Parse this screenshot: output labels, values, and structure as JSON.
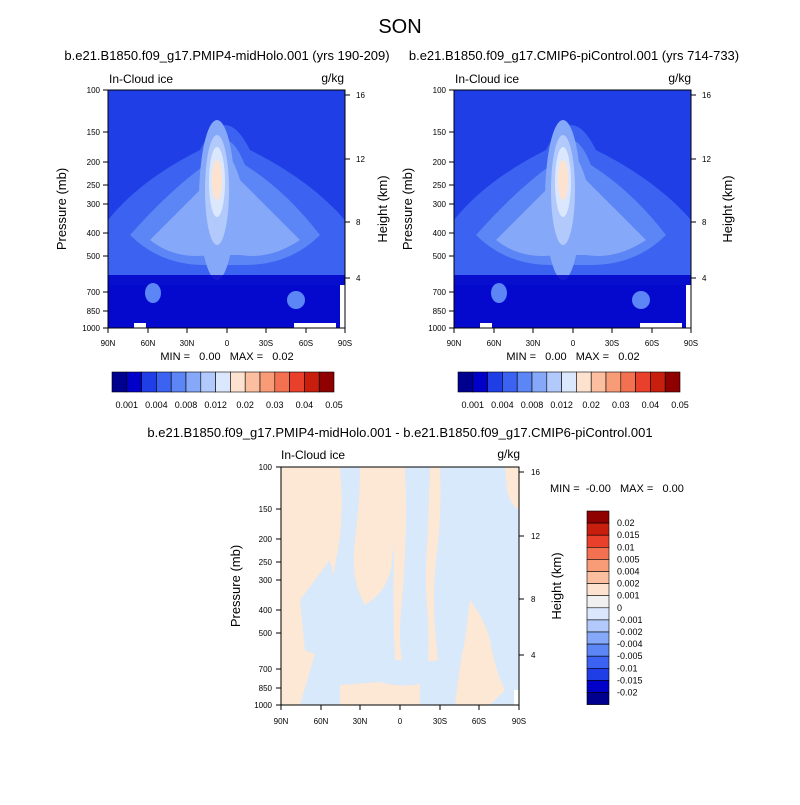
{
  "page": {
    "main_title": "SON"
  },
  "panels": [
    {
      "title": "b.e21.B1850.f09_g17.PMIP4-midHolo.001 (yrs 190-209)",
      "left_label": "In-Cloud ice",
      "right_label": "g/kg",
      "stats": "MIN =   0.00   MAX =   0.02"
    },
    {
      "title": "b.e21.B1850.f09_g17.CMIP6-piControl.001 (yrs 714-733)",
      "left_label": "In-Cloud ice",
      "right_label": "g/kg",
      "stats": "MIN =   0.00   MAX =   0.02"
    },
    {
      "title": "b.e21.B1850.f09_g17.PMIP4-midHolo.001 - b.e21.B1850.f09_g17.CMIP6-piControl.001",
      "left_label": "In-Cloud ice",
      "right_label": "g/kg",
      "stats": "MIN =  -0.00   MAX =   0.00"
    }
  ],
  "chart_data": [
    {
      "type": "heatmap",
      "title": "b.e21.B1850.f09_g17.PMIP4-midHolo.001 (yrs 190-209)",
      "xlabel": "",
      "ylabel": "Pressure (mb)",
      "y2label": "Height (km)",
      "x_ticks": [
        "90N",
        "60N",
        "30N",
        "0",
        "30S",
        "60S",
        "90S"
      ],
      "y_ticks": [
        "100",
        "150",
        "200",
        "250",
        "300",
        "400",
        "500",
        "700",
        "850",
        "1000"
      ],
      "y2_ticks": [
        "16",
        "12",
        "8",
        "4"
      ],
      "y_scale": "log",
      "colorbar": {
        "orientation": "horizontal",
        "labels": [
          "0.001",
          "0.004",
          "0.008",
          "0.012",
          "0.02",
          "0.03",
          "0.04",
          "0.05"
        ]
      },
      "min": 0.0,
      "max": 0.02
    },
    {
      "type": "heatmap",
      "title": "b.e21.B1850.f09_g17.CMIP6-piControl.001 (yrs 714-733)",
      "xlabel": "",
      "ylabel": "Pressure (mb)",
      "y2label": "Height (km)",
      "x_ticks": [
        "90N",
        "60N",
        "30N",
        "0",
        "30S",
        "60S",
        "90S"
      ],
      "y_ticks": [
        "100",
        "150",
        "200",
        "250",
        "300",
        "400",
        "500",
        "700",
        "850",
        "1000"
      ],
      "y2_ticks": [
        "16",
        "12",
        "8",
        "4"
      ],
      "y_scale": "log",
      "colorbar": {
        "orientation": "horizontal",
        "labels": [
          "0.001",
          "0.004",
          "0.008",
          "0.012",
          "0.02",
          "0.03",
          "0.04",
          "0.05"
        ]
      },
      "min": 0.0,
      "max": 0.02
    },
    {
      "type": "heatmap",
      "title": "b.e21.B1850.f09_g17.PMIP4-midHolo.001 - b.e21.B1850.f09_g17.CMIP6-piControl.001",
      "xlabel": "",
      "ylabel": "Pressure (mb)",
      "y2label": "Height (km)",
      "x_ticks": [
        "90N",
        "60N",
        "30N",
        "0",
        "30S",
        "60S",
        "90S"
      ],
      "y_ticks": [
        "100",
        "150",
        "200",
        "250",
        "300",
        "400",
        "500",
        "700",
        "850",
        "1000"
      ],
      "y2_ticks": [
        "16",
        "12",
        "8",
        "4"
      ],
      "y_scale": "log",
      "colorbar": {
        "orientation": "vertical",
        "labels": [
          "0.02",
          "0.015",
          "0.01",
          "0.005",
          "0.004",
          "0.002",
          "0.001",
          "0",
          "-0.001",
          "-0.002",
          "-0.004",
          "-0.005",
          "-0.01",
          "-0.015",
          "-0.02"
        ]
      },
      "min": -0.0,
      "max": 0.0
    }
  ],
  "colors": {
    "seq": [
      "#00008f",
      "#0000c8",
      "#1f3ee6",
      "#3b62f0",
      "#5c85f5",
      "#86a8f8",
      "#b2c9fb",
      "#dbe7fd",
      "#fde2d0",
      "#fbbfa0",
      "#f89c78",
      "#f37050",
      "#e8402a",
      "#c81e0e",
      "#8f0000"
    ],
    "div_neg": [
      "#00008f",
      "#0000c8",
      "#1f3ee6",
      "#3b62f0",
      "#5c85f5",
      "#86a8f8",
      "#b2c9fb",
      "#dbe7fd"
    ],
    "div_pos": [
      "#fde2d0",
      "#fbbfa0",
      "#f89c78",
      "#f37050",
      "#e8402a",
      "#c81e0e",
      "#8f0000"
    ],
    "zero": "#f0f0f0",
    "pos_small": "#fde7d5",
    "neg_small": "#d8e9fb"
  }
}
